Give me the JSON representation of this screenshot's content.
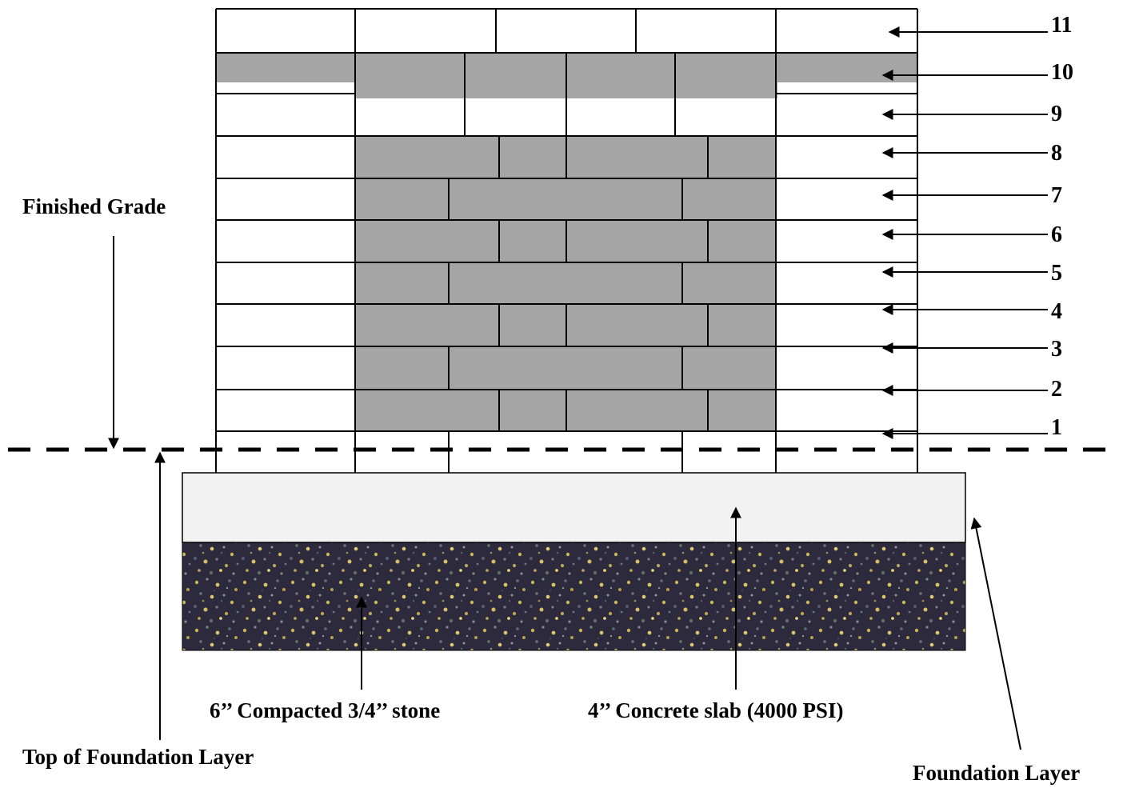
{
  "labels": {
    "finished_grade": "Finished Grade",
    "top_of_foundation": "Top of Foundation Layer",
    "foundation_layer": "Foundation Layer",
    "stone": "6’’ Compacted 3/4’’ stone",
    "slab": "4’’ Concrete slab (4000 PSI)"
  },
  "course_numbers": [
    "11",
    "10",
    "9",
    "8",
    "7",
    "6",
    "5",
    "4",
    "3",
    "2",
    "1"
  ],
  "colors": {
    "block_gray": "#a5a5a5",
    "block_white": "#ffffff",
    "slab": "#f2f2f2",
    "line": "#000000"
  }
}
